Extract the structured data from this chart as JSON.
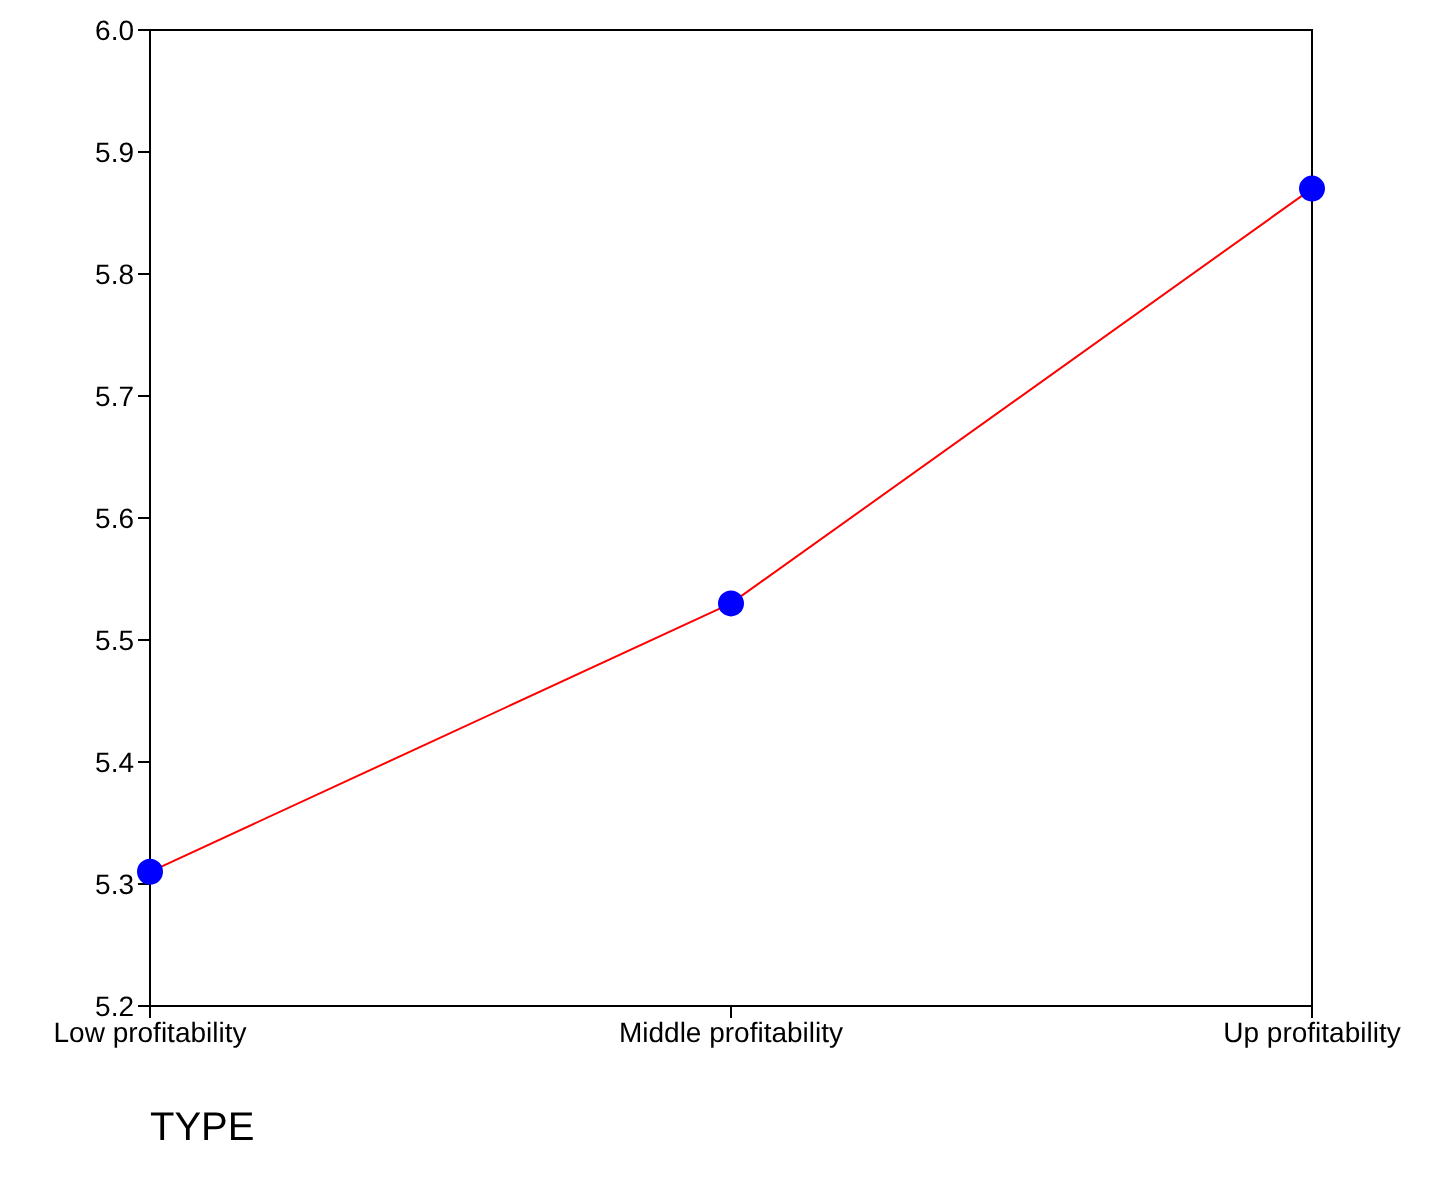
{
  "chart_data": {
    "type": "line",
    "xlabel": "TYPE",
    "categories": [
      "Low profitability",
      "Middle profitability",
      "Up profitability"
    ],
    "series": [
      {
        "color": "#ff0000",
        "colors": [
          "#0000ff",
          "#0000ff",
          "#0000ff"
        ],
        "values": [
          5.31,
          5.53,
          5.87
        ]
      }
    ],
    "marker": "circle",
    "ylim": [
      5.2,
      6.0
    ],
    "yticks": [
      5.2,
      5.3,
      5.4,
      5.5,
      5.6,
      5.7,
      5.8,
      5.9,
      {
        "value": 6,
        "label": "6.0"
      }
    ],
    "grid": false,
    "legend": false
  }
}
